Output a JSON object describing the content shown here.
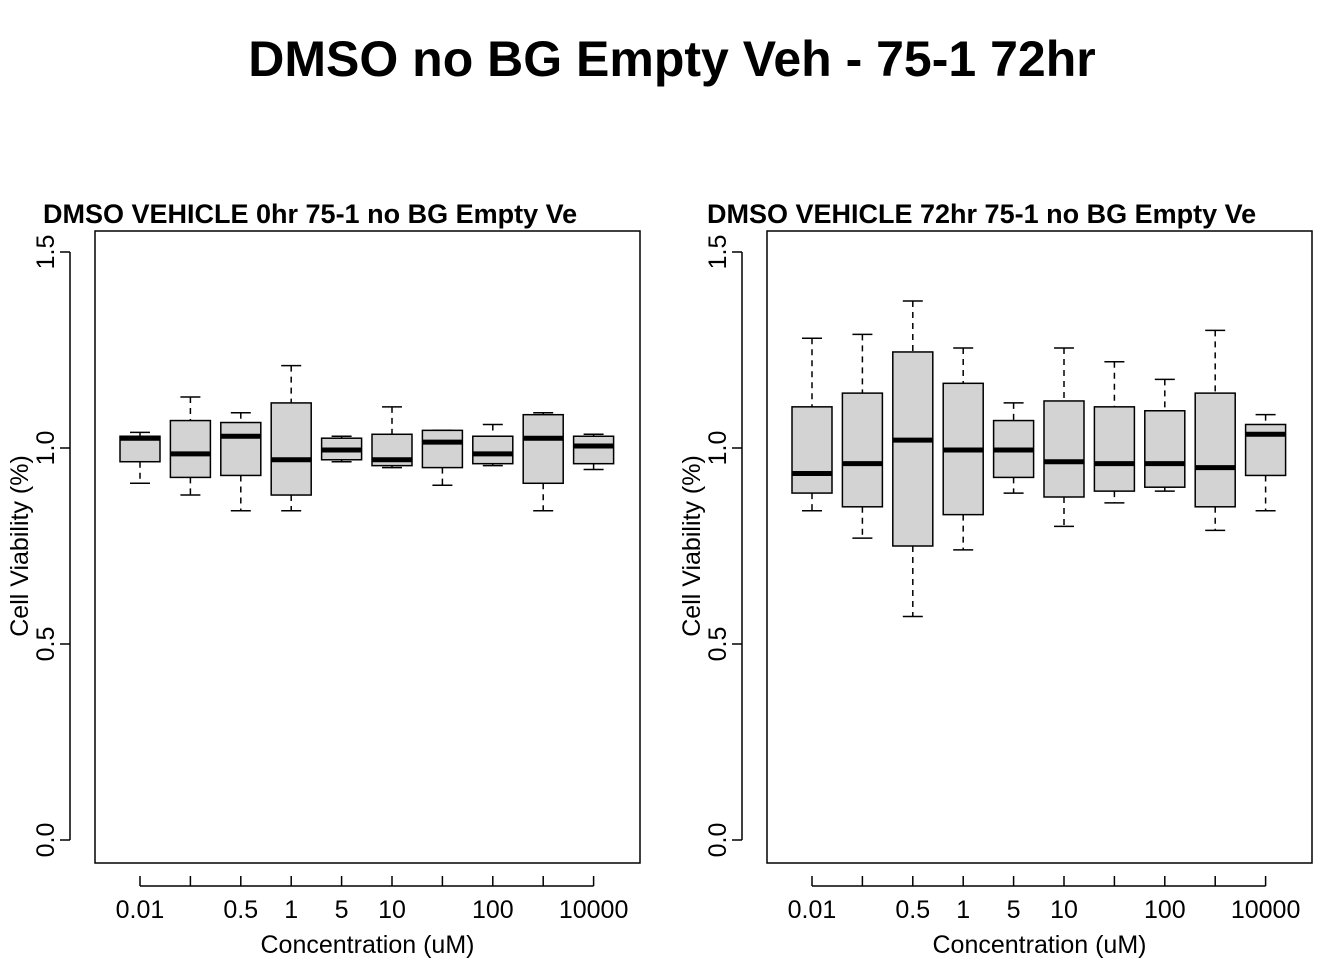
{
  "title": "DMSO no BG Empty Veh - 75-1 72hr",
  "chart_data": [
    {
      "type": "box",
      "title": "DMSO VEHICLE 0hr 75-1 no BG Empty Ve",
      "xlabel": "Concentration (uM)",
      "ylabel": "Cell Viability (%)",
      "ylim": [
        0,
        1.5
      ],
      "y_ticks": [
        "0.0",
        "0.5",
        "1.0",
        "1.5"
      ],
      "x_tick_labels": [
        "0.01",
        "",
        "0.5",
        "1",
        "5",
        "10",
        "",
        "100",
        "",
        "10000"
      ],
      "boxes": [
        {
          "whisker_low": 0.91,
          "q1": 0.965,
          "median": 1.025,
          "q3": 1.03,
          "whisker_high": 1.04
        },
        {
          "whisker_low": 0.88,
          "q1": 0.925,
          "median": 0.985,
          "q3": 1.07,
          "whisker_high": 1.13
        },
        {
          "whisker_low": 0.84,
          "q1": 0.93,
          "median": 1.03,
          "q3": 1.065,
          "whisker_high": 1.09
        },
        {
          "whisker_low": 0.84,
          "q1": 0.88,
          "median": 0.97,
          "q3": 1.115,
          "whisker_high": 1.21
        },
        {
          "whisker_low": 0.965,
          "q1": 0.97,
          "median": 0.995,
          "q3": 1.025,
          "whisker_high": 1.03
        },
        {
          "whisker_low": 0.95,
          "q1": 0.955,
          "median": 0.97,
          "q3": 1.035,
          "whisker_high": 1.105
        },
        {
          "whisker_low": 0.905,
          "q1": 0.95,
          "median": 1.015,
          "q3": 1.045,
          "whisker_high": 1.045
        },
        {
          "whisker_low": 0.955,
          "q1": 0.96,
          "median": 0.985,
          "q3": 1.03,
          "whisker_high": 1.06
        },
        {
          "whisker_low": 0.84,
          "q1": 0.91,
          "median": 1.025,
          "q3": 1.085,
          "whisker_high": 1.09
        },
        {
          "whisker_low": 0.945,
          "q1": 0.96,
          "median": 1.005,
          "q3": 1.03,
          "whisker_high": 1.035
        }
      ]
    },
    {
      "type": "box",
      "title": "DMSO VEHICLE 72hr 75-1 no BG Empty Ve",
      "xlabel": "Concentration (uM)",
      "ylabel": "Cell Viability (%)",
      "ylim": [
        0,
        1.5
      ],
      "y_ticks": [
        "0.0",
        "0.5",
        "1.0",
        "1.5"
      ],
      "x_tick_labels": [
        "0.01",
        "",
        "0.5",
        "1",
        "5",
        "10",
        "",
        "100",
        "",
        "10000"
      ],
      "boxes": [
        {
          "whisker_low": 0.84,
          "q1": 0.885,
          "median": 0.935,
          "q3": 1.105,
          "whisker_high": 1.28
        },
        {
          "whisker_low": 0.77,
          "q1": 0.85,
          "median": 0.96,
          "q3": 1.14,
          "whisker_high": 1.29
        },
        {
          "whisker_low": 0.57,
          "q1": 0.75,
          "median": 1.02,
          "q3": 1.245,
          "whisker_high": 1.375
        },
        {
          "whisker_low": 0.74,
          "q1": 0.83,
          "median": 0.995,
          "q3": 1.165,
          "whisker_high": 1.255
        },
        {
          "whisker_low": 0.885,
          "q1": 0.925,
          "median": 0.995,
          "q3": 1.07,
          "whisker_high": 1.115
        },
        {
          "whisker_low": 0.8,
          "q1": 0.875,
          "median": 0.965,
          "q3": 1.12,
          "whisker_high": 1.255
        },
        {
          "whisker_low": 0.86,
          "q1": 0.89,
          "median": 0.96,
          "q3": 1.105,
          "whisker_high": 1.22
        },
        {
          "whisker_low": 0.89,
          "q1": 0.9,
          "median": 0.96,
          "q3": 1.095,
          "whisker_high": 1.175
        },
        {
          "whisker_low": 0.79,
          "q1": 0.85,
          "median": 0.95,
          "q3": 1.14,
          "whisker_high": 1.3
        },
        {
          "whisker_low": 0.84,
          "q1": 0.93,
          "median": 1.035,
          "q3": 1.06,
          "whisker_high": 1.085
        }
      ]
    }
  ]
}
